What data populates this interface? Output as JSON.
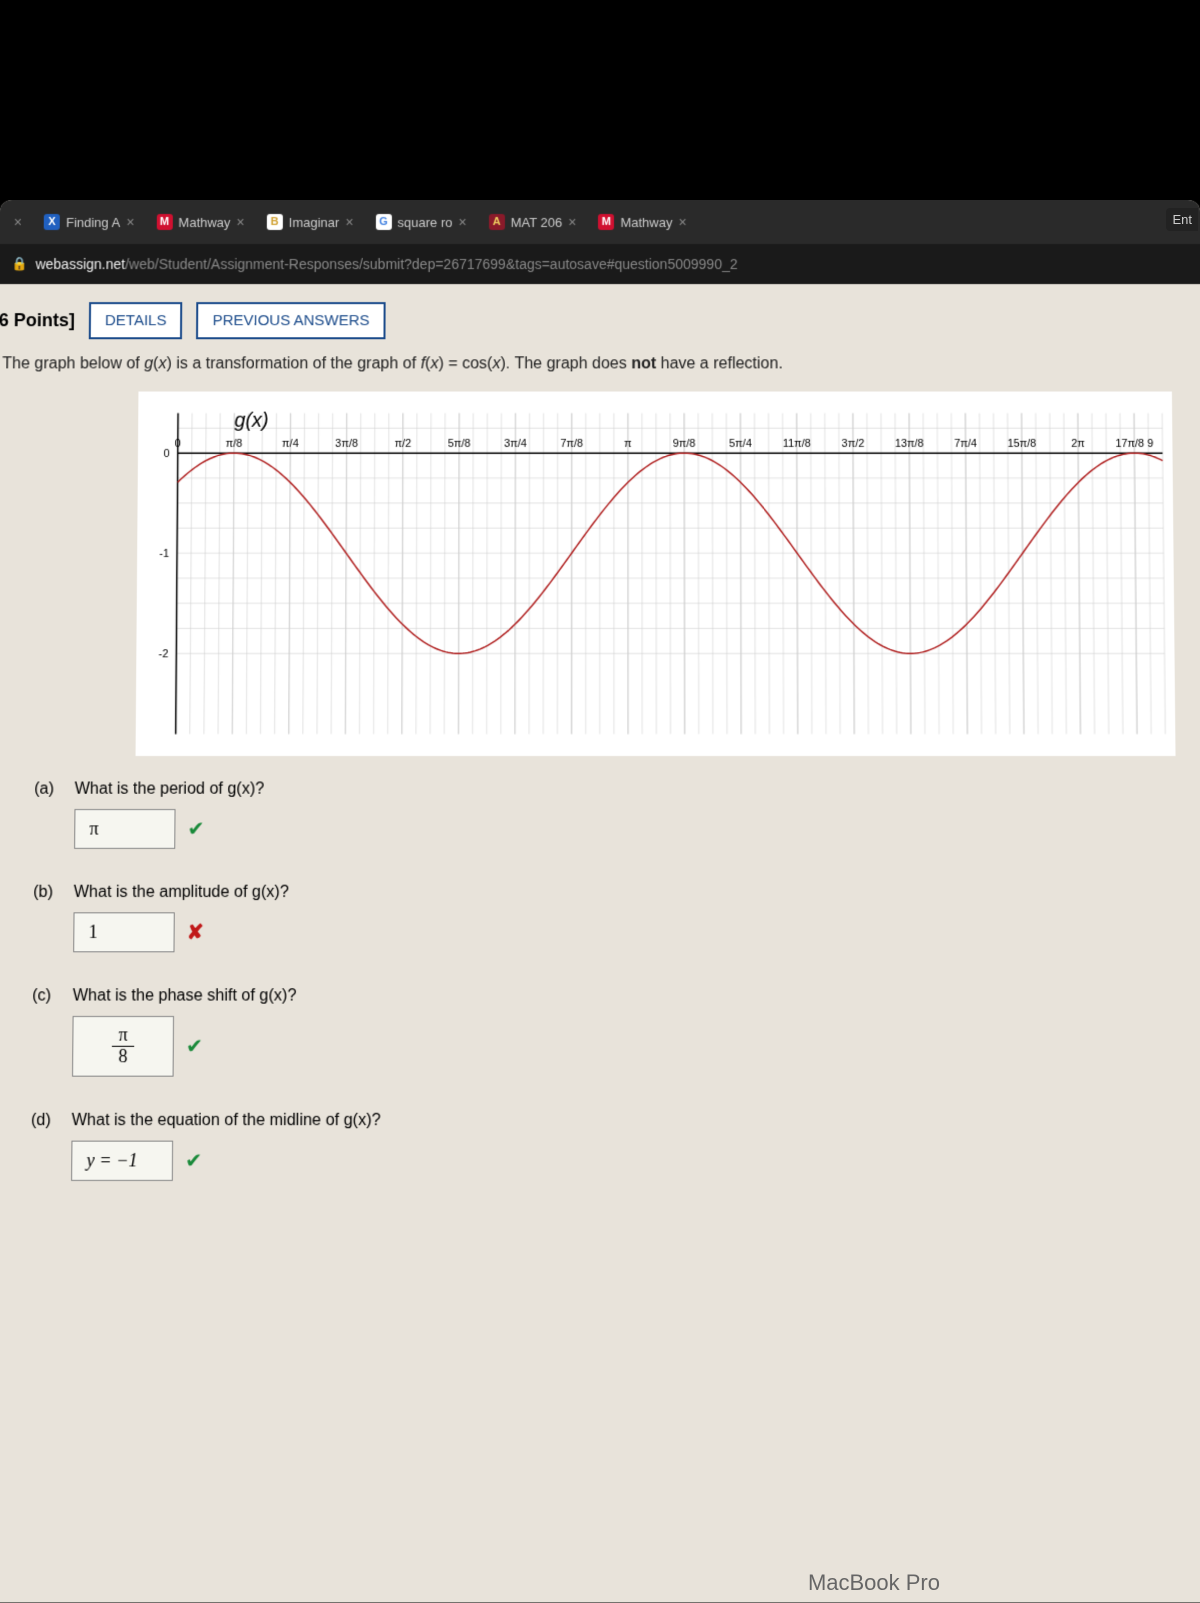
{
  "tabs": [
    {
      "title": "",
      "icon": "×",
      "icon_bg": "#fff",
      "icon_color": "#000"
    },
    {
      "title": "Finding A",
      "icon": "X",
      "icon_bg": "#2060c0",
      "icon_color": "#fff"
    },
    {
      "title": "Mathway",
      "icon": "M",
      "icon_bg": "#d01030",
      "icon_color": "#fff"
    },
    {
      "title": "Imaginar",
      "icon": "B",
      "icon_bg": "#fff",
      "icon_color": "#d0a030"
    },
    {
      "title": "square ro",
      "icon": "G",
      "icon_bg": "#fff",
      "icon_color": "#4080e0"
    },
    {
      "title": "MAT 206",
      "icon": "A",
      "icon_bg": "#8a1a2a",
      "icon_color": "#f0d060"
    },
    {
      "title": "Mathway",
      "icon": "M",
      "icon_bg": "#d01030",
      "icon_color": "#fff"
    }
  ],
  "ent_label": "Ent",
  "url": {
    "host": "webassign.net",
    "path": "/web/Student/Assignment-Responses/submit?dep=26717699&tags=autosave#question5009990_2"
  },
  "points_label": "6 Points]",
  "details_btn": "DETAILS",
  "prev_btn": "PREVIOUS ANSWERS",
  "question_html": "The graph below of g(x) is a transformation of the graph of f(x) = cos(x). The graph does not have a reflection.",
  "chart": {
    "type": "line",
    "title": "g(x)",
    "x_ticks": [
      "0",
      "π/8",
      "π/4",
      "3π/8",
      "π/2",
      "5π/8",
      "3π/4",
      "7π/8",
      "π",
      "9π/8",
      "5π/4",
      "11π/8",
      "3π/2",
      "13π/8",
      "7π/4",
      "15π/8",
      "2π",
      "17π/8 9"
    ],
    "y_ticks": [
      0,
      -1,
      -2
    ],
    "xlim": [
      0,
      17.5
    ],
    "ylim": [
      -2.8,
      0.4
    ],
    "amplitude": 1,
    "midline": -1,
    "period_units": 8,
    "phase_shift_units": 1,
    "line_color": "#b02020",
    "line_width": 1.5,
    "grid_color": "#d0d0d0",
    "axis_color": "#000",
    "background": "#ffffff",
    "title_fontsize": 20,
    "tick_fontsize": 11
  },
  "parts": {
    "a": {
      "q": "What is the period of g(x)?",
      "ans": "π",
      "status": "check"
    },
    "b": {
      "q": "What is the amplitude of g(x)?",
      "ans": "1",
      "status": "cross"
    },
    "c": {
      "q": "What is the phase shift of g(x)?",
      "ans_num": "π",
      "ans_den": "8",
      "status": "check"
    },
    "d": {
      "q": "What is the equation of the midline of g(x)?",
      "ans": "y = −1",
      "status": "check"
    }
  },
  "macbook": "MacBook Pro",
  "colors": {
    "page_bg": "#e8e3da",
    "btn_border": "#1a4a8a",
    "check": "#1a8a3a",
    "cross": "#c01818"
  }
}
